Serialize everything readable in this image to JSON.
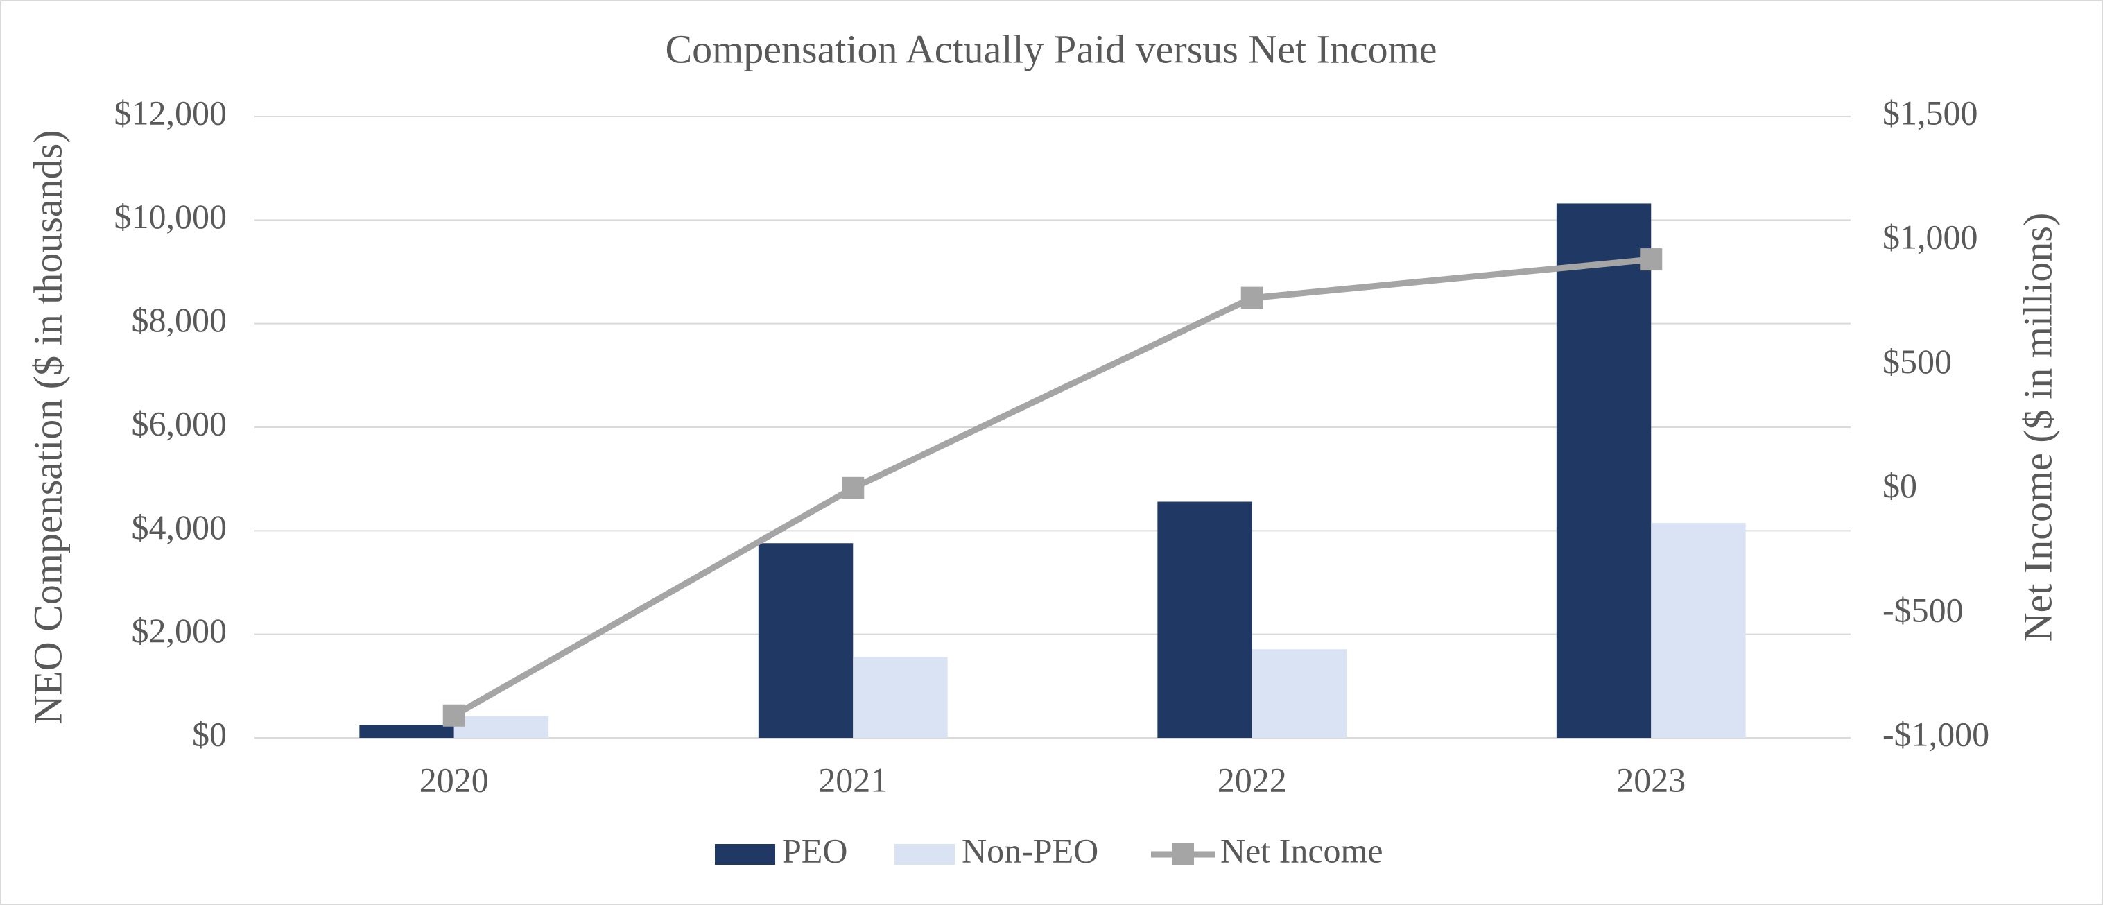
{
  "chart_data": {
    "type": "bar",
    "title": "Compensation Actually Paid versus Net Income",
    "y_label": "NEO Compensation ($ in thousands)",
    "y2_label": "Net Income ($ in millions)",
    "categories": [
      "2020",
      "2021",
      "2022",
      "2023"
    ],
    "series": [
      {
        "name": "PEO",
        "color": "#1f3864",
        "values": [
          250,
          3760,
          4560,
          10320
        ]
      },
      {
        "name": "Non-PEO",
        "color": "#dae3f3",
        "values": [
          420,
          1560,
          1710,
          4150
        ]
      },
      {
        "name": "Net Income",
        "color": "#a5a5a5",
        "type": "line",
        "axis": "y2",
        "values": [
          -910,
          5,
          770,
          925
        ]
      }
    ],
    "ylim": [
      0,
      12000
    ],
    "yticks": [
      {
        "value": 0,
        "label": "$0"
      },
      {
        "value": 2000,
        "label": "$2,000"
      },
      {
        "value": 4000,
        "label": "$4,000"
      },
      {
        "value": 6000,
        "label": "$6,000"
      },
      {
        "value": 8000,
        "label": "$8,000"
      },
      {
        "value": 10000,
        "label": "$10,000"
      },
      {
        "value": 12000,
        "label": "$12,000"
      }
    ],
    "y2lim": [
      -1000,
      1500
    ],
    "y2ticks": [
      {
        "value": -1000,
        "label": "-$1,000"
      },
      {
        "value": -500,
        "label": "-$500"
      },
      {
        "value": 0,
        "label": "$0"
      },
      {
        "value": 500,
        "label": "$500"
      },
      {
        "value": 1000,
        "label": "$1,000"
      },
      {
        "value": 1500,
        "label": "$1,500"
      }
    ],
    "grid": true,
    "legend": "bottom"
  }
}
